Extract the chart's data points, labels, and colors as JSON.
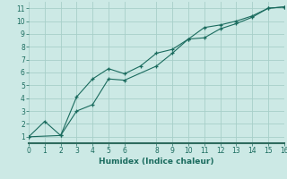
{
  "xlabel": "Humidex (Indice chaleur)",
  "background_color": "#cce9e5",
  "grid_color": "#a8cfc9",
  "line_color": "#1a6b5e",
  "line1_x": [
    0,
    1,
    2,
    3,
    4,
    5,
    6,
    7,
    8,
    9,
    10,
    11,
    12,
    13,
    14,
    15,
    16
  ],
  "line1_y": [
    1.0,
    2.2,
    1.1,
    4.1,
    5.5,
    6.3,
    5.9,
    6.5,
    7.5,
    7.8,
    8.6,
    9.5,
    9.7,
    10.0,
    10.4,
    11.0,
    11.1
  ],
  "line2_x": [
    0,
    2,
    3,
    4,
    5,
    6,
    8,
    9,
    10,
    11,
    12,
    13,
    14,
    15,
    16
  ],
  "line2_y": [
    1.0,
    1.1,
    3.0,
    3.5,
    5.5,
    5.4,
    6.5,
    7.5,
    8.6,
    8.7,
    9.4,
    9.8,
    10.3,
    11.0,
    11.1
  ],
  "xlim": [
    0,
    16
  ],
  "ylim": [
    0.5,
    11.5
  ],
  "xticks": [
    0,
    1,
    2,
    3,
    4,
    5,
    6,
    8,
    9,
    10,
    11,
    12,
    13,
    14,
    15,
    16
  ],
  "yticks": [
    1,
    2,
    3,
    4,
    5,
    6,
    7,
    8,
    9,
    10,
    11
  ],
  "tick_fontsize": 5.5,
  "xlabel_fontsize": 6.5,
  "bottom_bar_color": "#2e6b5e"
}
